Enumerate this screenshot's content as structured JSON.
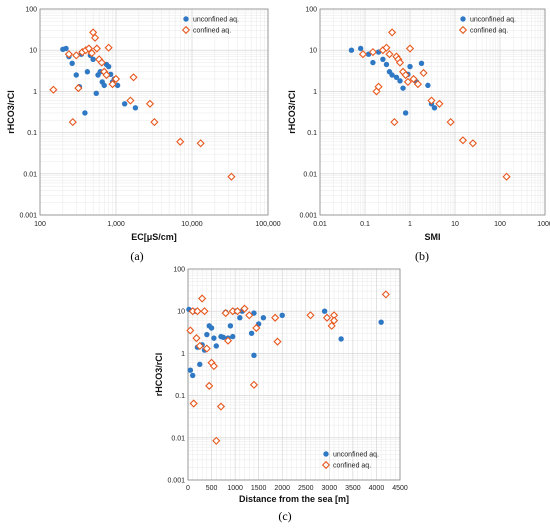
{
  "colors": {
    "unconfined": "#2f78c4",
    "confined": "#e8581e"
  },
  "chart_data": [
    {
      "panel": "(a)",
      "type": "scatter",
      "xlabel": "EC[μS/cm]",
      "ylabel": "rHCO3/rCl",
      "xscale": "log",
      "yscale": "log",
      "xlim": [
        100,
        100000
      ],
      "ylim": [
        0.001,
        100
      ],
      "xticks": [
        "100",
        "1,000",
        "10,000",
        "100,000"
      ],
      "yticks": [
        "0.001",
        "0.01",
        "0.1",
        "1",
        "10",
        "100"
      ],
      "grid": true,
      "legend": "top-right",
      "series": [
        {
          "name": "unconfined aq.",
          "marker": "circle",
          "points": [
            [
              200,
              10.5
            ],
            [
              220,
              11
            ],
            [
              240,
              7
            ],
            [
              265,
              4.8
            ],
            [
              300,
              2.5
            ],
            [
              330,
              1.3
            ],
            [
              350,
              8
            ],
            [
              390,
              0.3
            ],
            [
              420,
              3
            ],
            [
              460,
              7.5
            ],
            [
              500,
              6
            ],
            [
              550,
              0.9
            ],
            [
              580,
              2.5
            ],
            [
              620,
              3
            ],
            [
              660,
              1.7
            ],
            [
              700,
              1.4
            ],
            [
              750,
              4.5
            ],
            [
              800,
              4
            ],
            [
              850,
              2.6
            ],
            [
              900,
              1.7
            ],
            [
              950,
              2
            ],
            [
              1050,
              1.4
            ],
            [
              1300,
              0.5
            ],
            [
              1800,
              0.4
            ]
          ]
        },
        {
          "name": "confined aq.",
          "marker": "diamond",
          "points": [
            [
              150,
              1.1
            ],
            [
              240,
              8
            ],
            [
              270,
              0.18
            ],
            [
              300,
              7.5
            ],
            [
              320,
              1.2
            ],
            [
              360,
              9
            ],
            [
              400,
              10
            ],
            [
              440,
              11
            ],
            [
              480,
              8.5
            ],
            [
              500,
              27
            ],
            [
              530,
              20
            ],
            [
              560,
              11
            ],
            [
              600,
              6
            ],
            [
              650,
              5
            ],
            [
              700,
              3
            ],
            [
              750,
              2.5
            ],
            [
              800,
              11.5
            ],
            [
              900,
              1.5
            ],
            [
              1000,
              2
            ],
            [
              1550,
              0.6
            ],
            [
              1700,
              2.2
            ],
            [
              2800,
              0.5
            ],
            [
              3200,
              0.18
            ],
            [
              7000,
              0.06
            ],
            [
              13000,
              0.055
            ],
            [
              33000,
              0.0085
            ]
          ]
        }
      ]
    },
    {
      "panel": "(b)",
      "type": "scatter",
      "xlabel": "SMI",
      "ylabel": "rHCO3/rCl",
      "xscale": "log",
      "yscale": "log",
      "xlim": [
        0.01,
        1000
      ],
      "ylim": [
        0.001,
        100
      ],
      "xticks": [
        "0.01",
        "0.1",
        "1",
        "10",
        "100",
        "1000"
      ],
      "yticks": [
        "0.001",
        "0.01",
        "0.1",
        "1",
        "10",
        "100"
      ],
      "grid": true,
      "legend": "top-right",
      "series": [
        {
          "name": "unconfined aq.",
          "marker": "circle",
          "points": [
            [
              0.05,
              10
            ],
            [
              0.08,
              11
            ],
            [
              0.12,
              8
            ],
            [
              0.15,
              5
            ],
            [
              0.2,
              9
            ],
            [
              0.25,
              6
            ],
            [
              0.3,
              4.5
            ],
            [
              0.35,
              3
            ],
            [
              0.4,
              2.5
            ],
            [
              0.5,
              2.2
            ],
            [
              0.6,
              1.8
            ],
            [
              0.7,
              1.2
            ],
            [
              0.8,
              0.3
            ],
            [
              0.9,
              2.6
            ],
            [
              1,
              4
            ],
            [
              1.2,
              2
            ],
            [
              1.4,
              1.7
            ],
            [
              1.8,
              4.8
            ],
            [
              2.5,
              1.4
            ],
            [
              3,
              0.5
            ],
            [
              3.5,
              0.4
            ]
          ]
        },
        {
          "name": "confined aq.",
          "marker": "diamond",
          "points": [
            [
              0.09,
              8
            ],
            [
              0.15,
              9
            ],
            [
              0.18,
              1
            ],
            [
              0.2,
              1.3
            ],
            [
              0.25,
              10
            ],
            [
              0.3,
              11.5
            ],
            [
              0.35,
              8
            ],
            [
              0.4,
              27
            ],
            [
              0.45,
              0.18
            ],
            [
              0.5,
              7
            ],
            [
              0.55,
              6
            ],
            [
              0.6,
              5
            ],
            [
              0.7,
              3
            ],
            [
              0.8,
              2.5
            ],
            [
              0.9,
              1.7
            ],
            [
              1,
              11
            ],
            [
              1.2,
              2
            ],
            [
              1.5,
              1.5
            ],
            [
              2,
              2.8
            ],
            [
              3,
              0.6
            ],
            [
              4.5,
              0.5
            ],
            [
              8,
              0.18
            ],
            [
              15,
              0.065
            ],
            [
              25,
              0.055
            ],
            [
              140,
              0.0085
            ]
          ]
        }
      ]
    },
    {
      "panel": "(c)",
      "type": "scatter",
      "xlabel": "Distance from the sea [m]",
      "ylabel": "rHCO3/rCl",
      "xscale": "linear",
      "yscale": "log",
      "xlim": [
        0,
        4500
      ],
      "ylim": [
        0.001,
        100
      ],
      "xticks": [
        "0",
        "500",
        "1000",
        "1500",
        "2000",
        "2500",
        "3000",
        "3500",
        "4000",
        "4500"
      ],
      "yticks": [
        "0.001",
        "0.01",
        "0.1",
        "1",
        "10",
        "100"
      ],
      "grid": true,
      "legend": "bottom-right",
      "series": [
        {
          "name": "unconfined aq.",
          "marker": "circle",
          "points": [
            [
              20,
              11
            ],
            [
              50,
              0.4
            ],
            [
              100,
              0.3
            ],
            [
              150,
              10
            ],
            [
              200,
              1.4
            ],
            [
              250,
              0.55
            ],
            [
              300,
              1.6
            ],
            [
              350,
              1.2
            ],
            [
              400,
              2.8
            ],
            [
              450,
              4.5
            ],
            [
              500,
              4
            ],
            [
              550,
              2.3
            ],
            [
              600,
              1.5
            ],
            [
              700,
              2.5
            ],
            [
              750,
              2.4
            ],
            [
              800,
              9.5
            ],
            [
              850,
              2.3
            ],
            [
              900,
              4.5
            ],
            [
              950,
              2.5
            ],
            [
              1000,
              10
            ],
            [
              1100,
              7
            ],
            [
              1150,
              10
            ],
            [
              1350,
              3
            ],
            [
              1400,
              0.9
            ],
            [
              1400,
              9
            ],
            [
              1500,
              5
            ],
            [
              1600,
              7
            ],
            [
              2000,
              8
            ],
            [
              2900,
              10
            ],
            [
              3250,
              2.2
            ],
            [
              4100,
              5.5
            ]
          ]
        },
        {
          "name": "confined aq.",
          "marker": "diamond",
          "points": [
            [
              50,
              3.5
            ],
            [
              100,
              10
            ],
            [
              120,
              0.065
            ],
            [
              180,
              2.3
            ],
            [
              200,
              10
            ],
            [
              250,
              1.5
            ],
            [
              300,
              20
            ],
            [
              350,
              10
            ],
            [
              400,
              1.3
            ],
            [
              450,
              0.17
            ],
            [
              500,
              0.6
            ],
            [
              550,
              0.5
            ],
            [
              600,
              0.0085
            ],
            [
              700,
              0.055
            ],
            [
              800,
              9
            ],
            [
              850,
              2
            ],
            [
              950,
              10
            ],
            [
              1050,
              10
            ],
            [
              1200,
              11.5
            ],
            [
              1300,
              8
            ],
            [
              1400,
              0.18
            ],
            [
              1450,
              4
            ],
            [
              1850,
              7
            ],
            [
              1900,
              1.9
            ],
            [
              2600,
              8
            ],
            [
              2950,
              7
            ],
            [
              3050,
              4.5
            ],
            [
              3100,
              8
            ],
            [
              3100,
              6
            ],
            [
              4200,
              25
            ]
          ]
        }
      ]
    }
  ]
}
